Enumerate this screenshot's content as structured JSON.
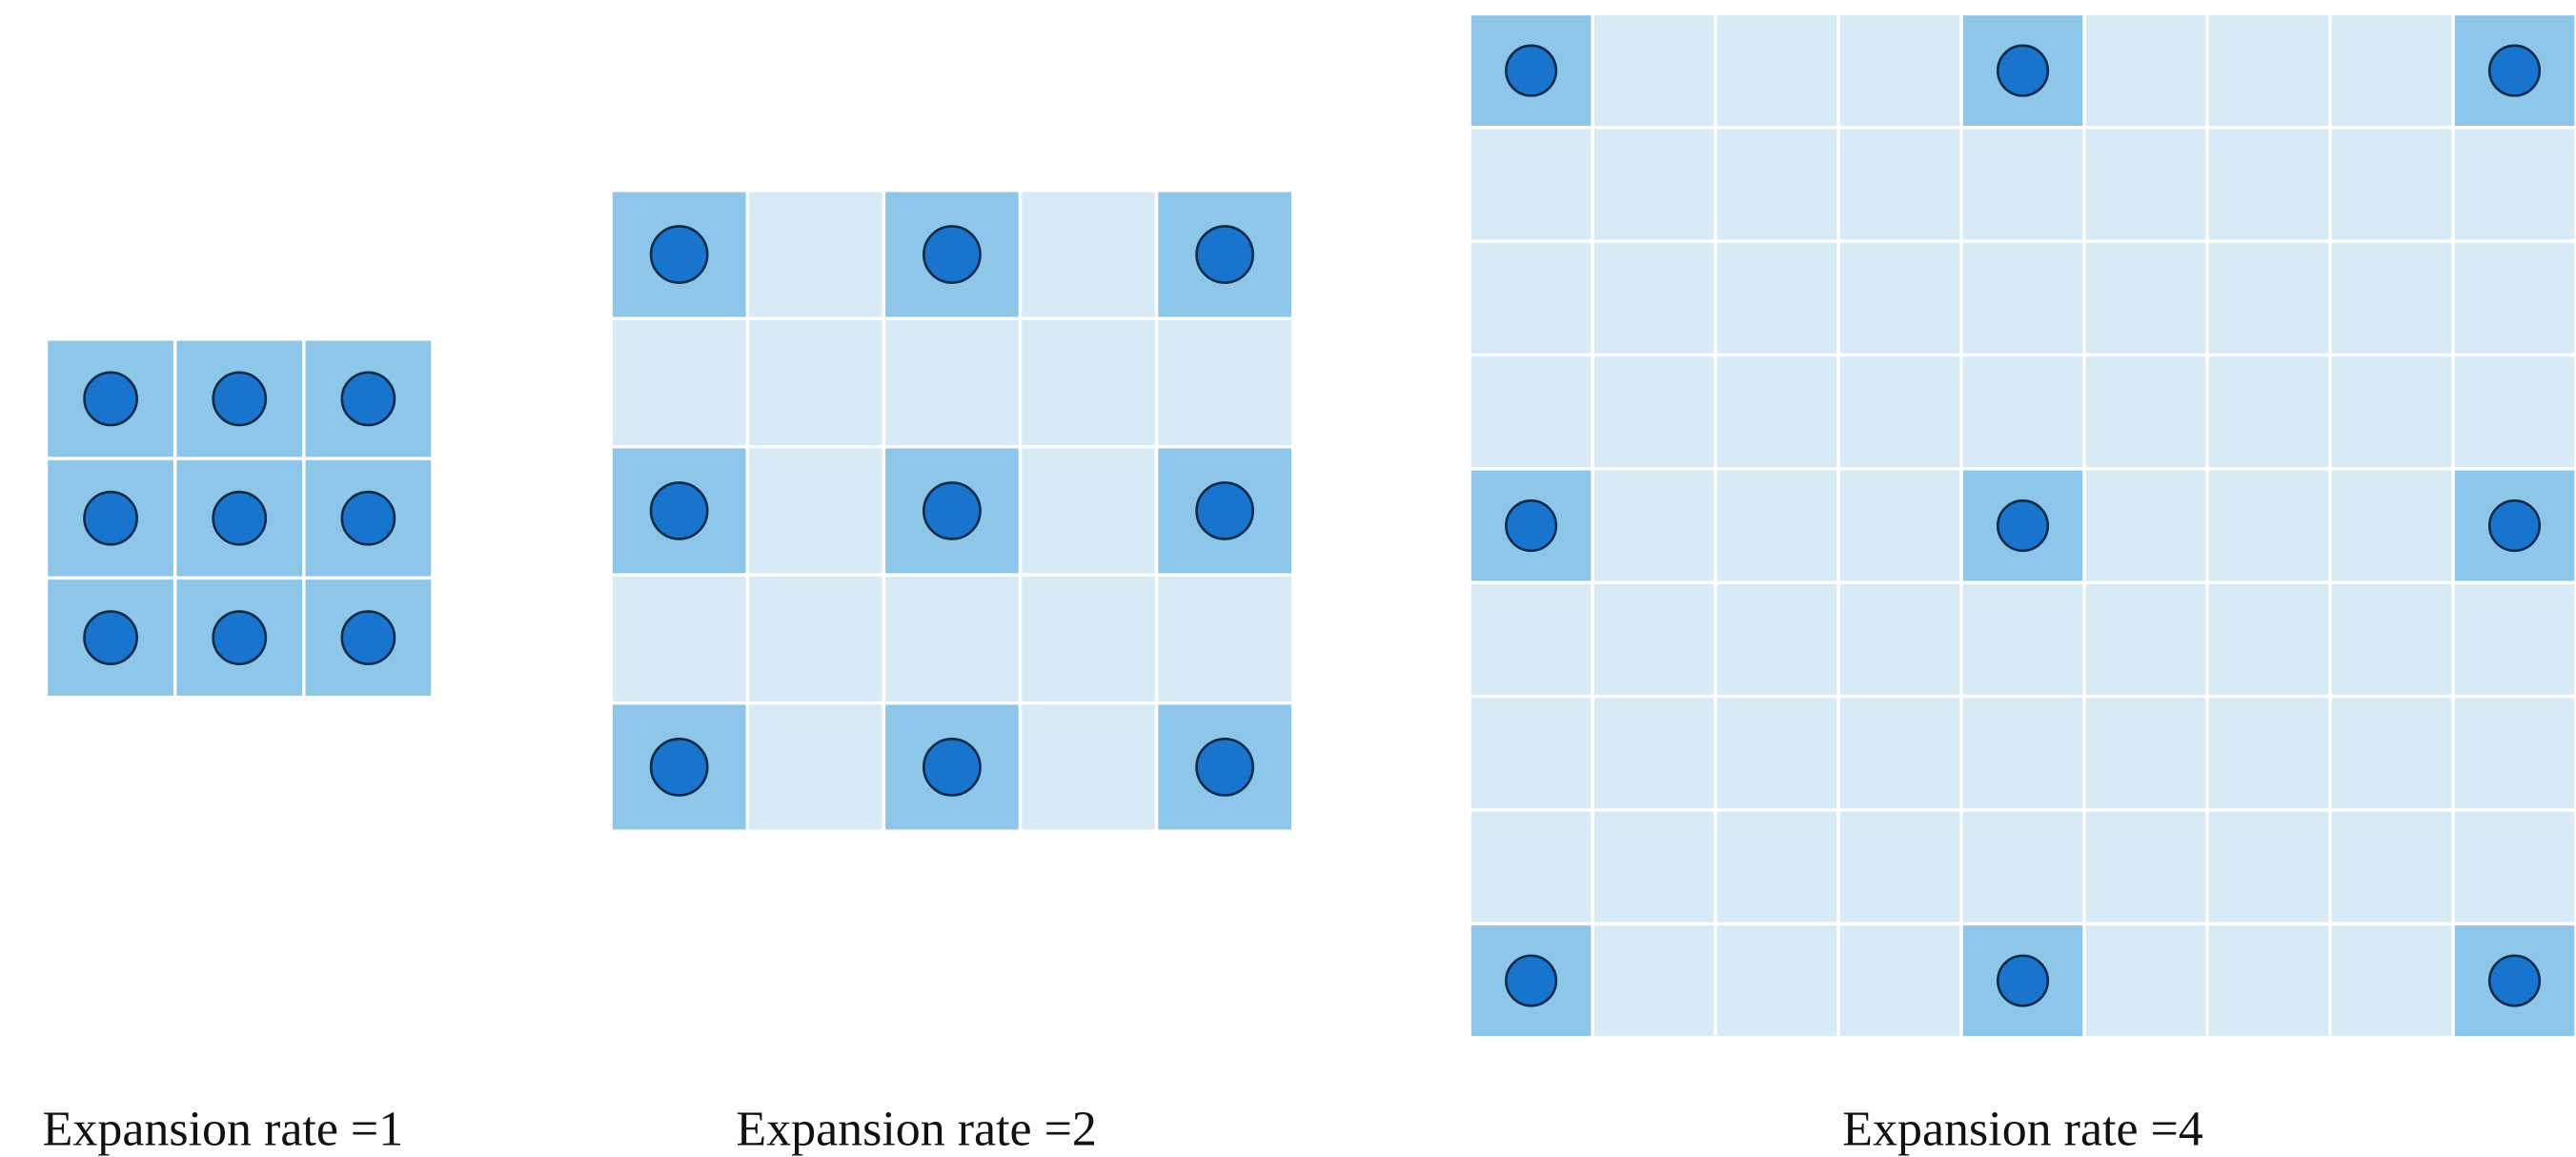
{
  "panels": [
    {
      "label": "Expansion rate =1"
    },
    {
      "label": "Expansion rate =2"
    },
    {
      "label": "Expansion rate =4"
    }
  ]
}
